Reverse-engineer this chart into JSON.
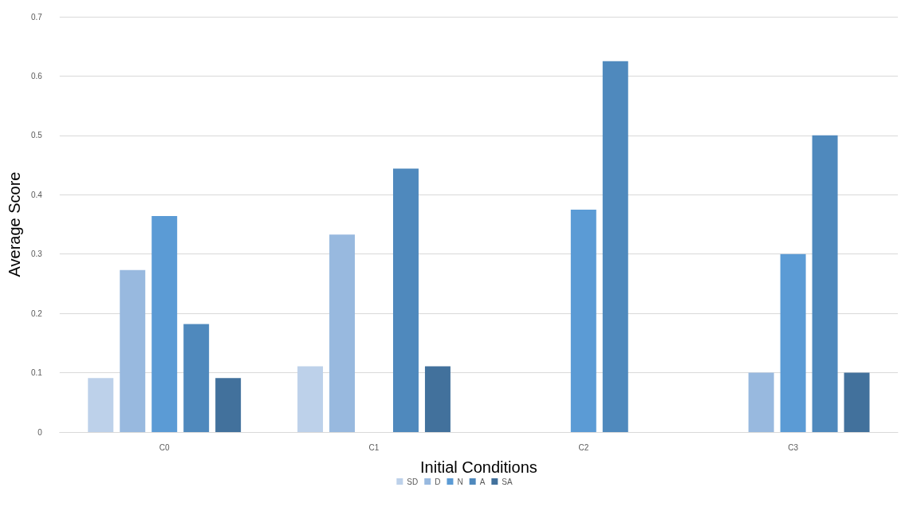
{
  "chart_data": {
    "type": "bar",
    "xlabel": "Initial Conditions",
    "ylabel": "Average Score",
    "categories": [
      "C0",
      "C1",
      "C2",
      "C3"
    ],
    "series": [
      {
        "name": "SD",
        "color": "#bdd1ea",
        "values": [
          0.091,
          0.111,
          0,
          0
        ]
      },
      {
        "name": "D",
        "color": "#98b9df",
        "values": [
          0.273,
          0.333,
          0,
          0.1
        ]
      },
      {
        "name": "N",
        "color": "#5b9bd5",
        "values": [
          0.364,
          0,
          0.375,
          0.3
        ]
      },
      {
        "name": "A",
        "color": "#4f89bd",
        "values": [
          0.182,
          0.444,
          0.625,
          0.5
        ]
      },
      {
        "name": "SA",
        "color": "#42719c",
        "values": [
          0.091,
          0.111,
          0,
          0.1
        ]
      }
    ],
    "ylim": [
      0,
      0.7
    ],
    "yticks": [
      0,
      0.1,
      0.2,
      0.3,
      0.4,
      0.5,
      0.6,
      0.7
    ],
    "grid": "y",
    "legend": "bottom"
  }
}
